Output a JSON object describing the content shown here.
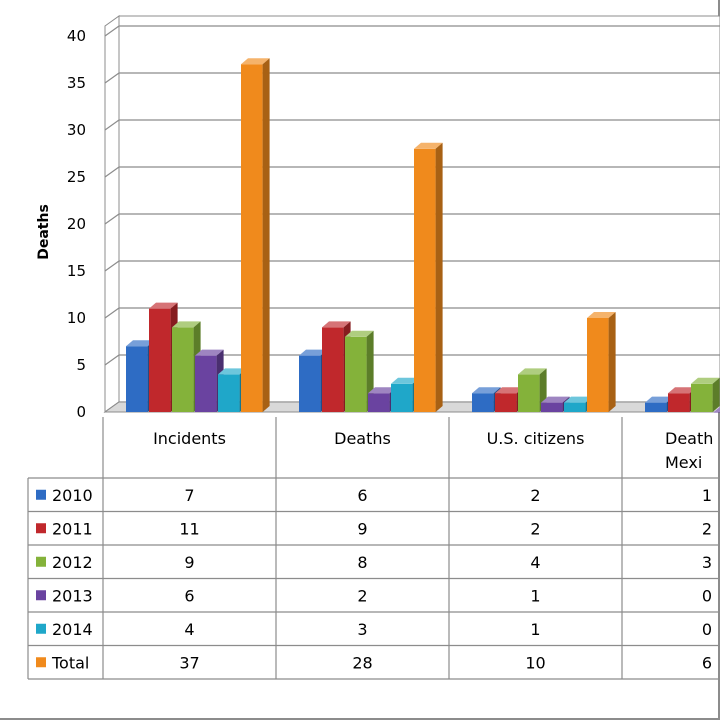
{
  "chart_data": {
    "type": "bar",
    "ylabel": "Deaths",
    "ylim": [
      0,
      40
    ],
    "yticks": [
      0,
      5,
      10,
      15,
      20,
      25,
      30,
      35,
      40
    ],
    "grid": true,
    "categories": [
      "Incidents",
      "Deaths",
      "U.S. citizens",
      "Deaths Mexi"
    ],
    "category_label_lines": [
      [
        "Incidents"
      ],
      [
        "Deaths"
      ],
      [
        "U.S. citizens"
      ],
      [
        "Death",
        "Mexi"
      ]
    ],
    "series": [
      {
        "name": "2010",
        "values": [
          7,
          6,
          2,
          1
        ],
        "color": "#2e6cc4"
      },
      {
        "name": "2011",
        "values": [
          11,
          9,
          2,
          2
        ],
        "color": "#c0282c"
      },
      {
        "name": "2012",
        "values": [
          9,
          8,
          4,
          3
        ],
        "color": "#84b23a"
      },
      {
        "name": "2013",
        "values": [
          6,
          2,
          1,
          0
        ],
        "color": "#6a43a0"
      },
      {
        "name": "2014",
        "values": [
          4,
          3,
          1,
          0
        ],
        "color": "#1fa7c9"
      },
      {
        "name": "Total",
        "values": [
          37,
          28,
          10,
          6
        ],
        "color": "#f08a1c"
      }
    ],
    "legend": "data-table"
  }
}
